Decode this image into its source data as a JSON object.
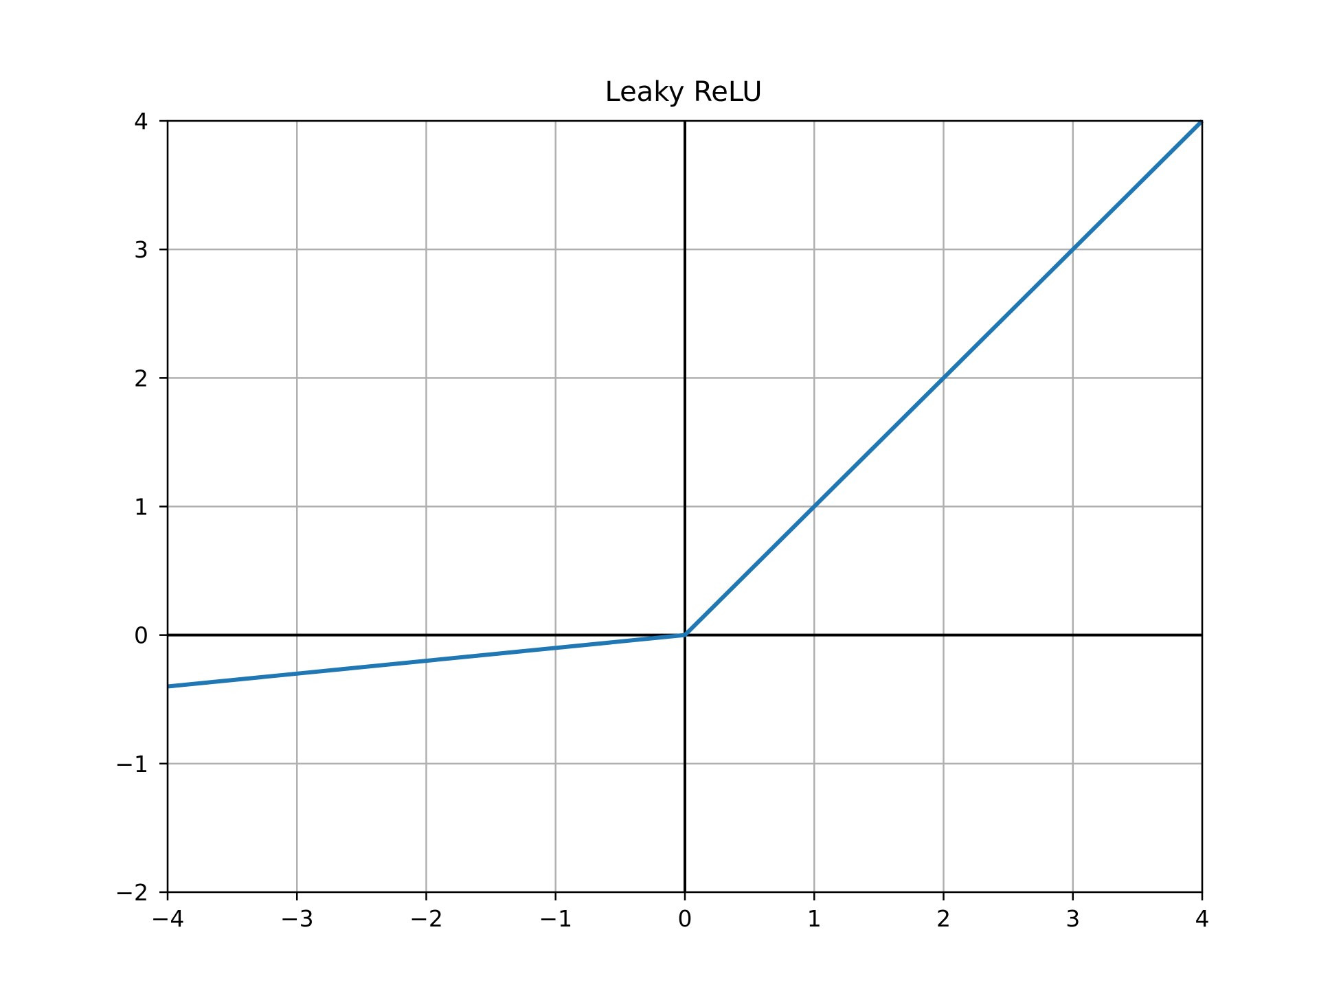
{
  "chart_data": {
    "type": "line",
    "title": "Leaky ReLU",
    "xlabel": "",
    "ylabel": "",
    "xlim": [
      -4,
      4
    ],
    "ylim": [
      -2,
      4
    ],
    "grid": true,
    "x_ticks": [
      -4,
      -3,
      -2,
      -1,
      0,
      1,
      2,
      3,
      4
    ],
    "y_ticks": [
      -2,
      -1,
      0,
      1,
      2,
      3,
      4
    ],
    "x_tick_labels": [
      "−4",
      "−3",
      "−2",
      "−1",
      "0",
      "1",
      "2",
      "3",
      "4"
    ],
    "y_tick_labels": [
      "−2",
      "−1",
      "0",
      "1",
      "2",
      "3",
      "4"
    ],
    "reference_lines": {
      "x_zero": true,
      "y_zero": true
    },
    "series": [
      {
        "x": [
          -4,
          -3,
          -2,
          -1,
          0,
          1,
          2,
          3,
          4
        ],
        "y": [
          -0.4,
          -0.3,
          -0.2,
          -0.1,
          0,
          1,
          2,
          3,
          4
        ],
        "color": "#1f77b4"
      }
    ],
    "colors": {
      "grid": "#b0b0b0",
      "axes": "#000000",
      "reference": "#000000"
    }
  }
}
